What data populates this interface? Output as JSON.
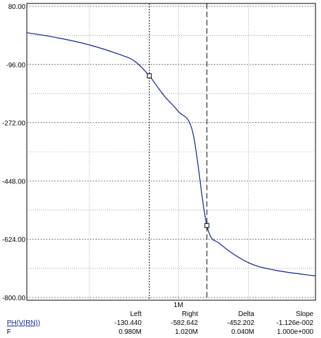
{
  "chart_data": {
    "type": "line",
    "y_ticks": [
      "80.00",
      "-96.00",
      "-272.00",
      "-448.00",
      "-624.00",
      "-800.00"
    ],
    "y_values": [
      80,
      -96,
      -272,
      -448,
      -624,
      -800
    ],
    "ylim": [
      -800,
      80
    ],
    "x_tick_label": "1M",
    "x_scale": "log",
    "xlim": [
      0.9,
      1.1
    ],
    "grid": true,
    "series": [
      {
        "color": "#0b1f8f",
        "points": [
          [
            0.9,
            0.0
          ],
          [
            0.92,
            -16
          ],
          [
            0.94,
            -37
          ],
          [
            0.96,
            -66
          ],
          [
            0.97,
            -86
          ],
          [
            0.98,
            -130.44
          ],
          [
            0.99,
            -190
          ],
          [
            1.0,
            -238
          ],
          [
            1.01,
            -300
          ],
          [
            1.02,
            -582.642
          ],
          [
            1.03,
            -640
          ],
          [
            1.05,
            -695
          ],
          [
            1.07,
            -718
          ],
          [
            1.1,
            -735
          ]
        ]
      }
    ],
    "cursors": [
      {
        "name": "left",
        "x": 0.98,
        "y": -130.44
      },
      {
        "name": "right",
        "x": 1.02,
        "y": -582.642
      }
    ]
  },
  "readout": {
    "headers": {
      "left": "Left",
      "right": "Right",
      "delta": "Delta",
      "slope": "Slope"
    },
    "rows": [
      {
        "label": "PH(V(RN))",
        "left": "-130.440",
        "right": "-582.642",
        "delta": "-452.202",
        "slope": "-1.126e-002"
      },
      {
        "label": "F",
        "left": "0.980M",
        "right": "1.020M",
        "delta": "0.040M",
        "slope": "1.000e+000"
      }
    ]
  }
}
